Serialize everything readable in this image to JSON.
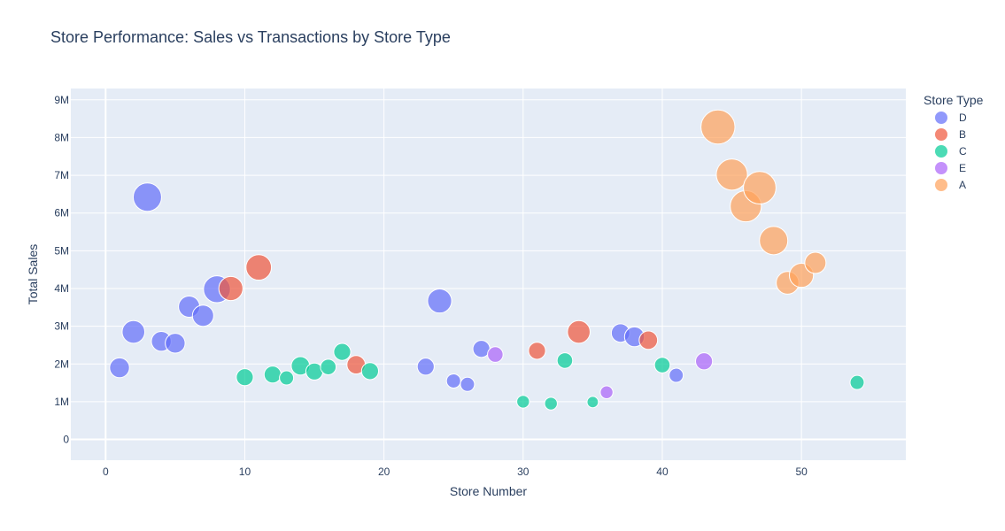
{
  "chart_data": {
    "type": "scatter",
    "title": "Store Performance: Sales vs Transactions by Store Type",
    "xlabel": "Store Number",
    "ylabel": "Total Sales",
    "xlim": [
      -2.5,
      57.5
    ],
    "ylim": [
      -0.55,
      9.3
    ],
    "y_unit": "millions",
    "x_ticks": [
      "0",
      "10",
      "20",
      "30",
      "40",
      "50"
    ],
    "y_ticks": [
      "0",
      "1M",
      "2M",
      "3M",
      "4M",
      "5M",
      "6M",
      "7M",
      "8M",
      "9M"
    ],
    "grid": true,
    "background": "#e5ecf6",
    "legend": {
      "title": "Store Type",
      "placement": "right"
    },
    "series": [
      {
        "name": "D",
        "color": "#636efa",
        "points": [
          [
            1,
            1.9,
            14
          ],
          [
            2,
            2.85,
            16
          ],
          [
            3,
            6.42,
            20
          ],
          [
            4,
            2.6,
            14
          ],
          [
            5,
            2.55,
            14
          ],
          [
            6,
            3.52,
            15
          ],
          [
            7,
            3.28,
            15
          ],
          [
            8,
            3.98,
            19
          ],
          [
            23,
            1.93,
            12
          ],
          [
            24,
            3.67,
            17
          ],
          [
            25,
            1.55,
            10
          ],
          [
            26,
            1.46,
            10
          ],
          [
            27,
            2.4,
            12
          ],
          [
            37,
            2.82,
            13
          ],
          [
            38,
            2.72,
            14
          ],
          [
            41,
            1.7,
            10
          ]
        ]
      },
      {
        "name": "B",
        "color": "#ef553b",
        "points": [
          [
            9,
            4.0,
            17
          ],
          [
            11,
            4.56,
            18
          ],
          [
            18,
            1.98,
            13
          ],
          [
            31,
            2.35,
            12
          ],
          [
            34,
            2.85,
            16
          ],
          [
            39,
            2.63,
            13
          ]
        ]
      },
      {
        "name": "C",
        "color": "#00cc96",
        "points": [
          [
            10,
            1.65,
            12
          ],
          [
            12,
            1.72,
            12
          ],
          [
            13,
            1.63,
            10
          ],
          [
            14,
            1.95,
            13
          ],
          [
            15,
            1.8,
            12
          ],
          [
            16,
            1.92,
            11
          ],
          [
            17,
            2.32,
            12
          ],
          [
            19,
            1.81,
            12
          ],
          [
            30,
            1.0,
            9
          ],
          [
            32,
            0.95,
            9
          ],
          [
            33,
            2.09,
            11
          ],
          [
            35,
            0.99,
            8
          ],
          [
            40,
            1.97,
            11
          ],
          [
            54,
            1.51,
            10
          ]
        ]
      },
      {
        "name": "E",
        "color": "#ab63fa",
        "points": [
          [
            28,
            2.25,
            11
          ],
          [
            36,
            1.25,
            9
          ],
          [
            43,
            2.07,
            12
          ]
        ]
      },
      {
        "name": "A",
        "color": "#ffa15a",
        "points": [
          [
            44,
            8.28,
            24
          ],
          [
            45,
            7.02,
            22
          ],
          [
            46,
            6.18,
            22
          ],
          [
            47,
            6.67,
            23
          ],
          [
            48,
            5.27,
            20
          ],
          [
            49,
            4.15,
            16
          ],
          [
            50,
            4.35,
            17
          ],
          [
            51,
            4.68,
            15
          ]
        ]
      }
    ]
  }
}
